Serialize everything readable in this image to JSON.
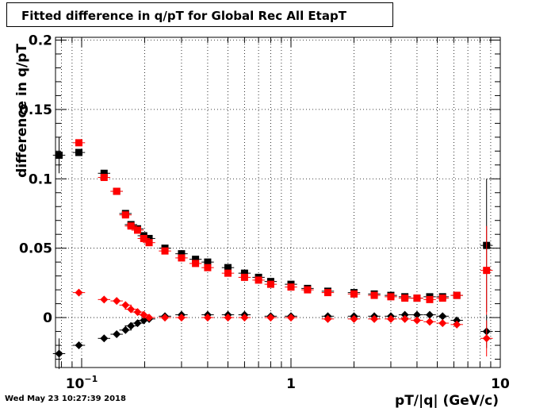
{
  "chart_data": {
    "type": "scatter",
    "title": "Fitted difference in q/pT for Global Rec All EtapT",
    "xlabel": "pT/|q| (GeV/c)",
    "ylabel": "difference in q/pT",
    "x_scale": "log",
    "xlim": [
      0.075,
      10
    ],
    "ylim": [
      -0.036,
      0.202
    ],
    "grid": true,
    "x_tick_labels": [
      {
        "value": 0.1,
        "base": "10",
        "exp": "−1"
      },
      {
        "value": 1,
        "base": "1",
        "exp": ""
      },
      {
        "value": 10,
        "base": "10",
        "exp": ""
      }
    ],
    "y_tick_labels": [
      {
        "value": 0,
        "label": "0"
      },
      {
        "value": 0.05,
        "label": "0.05"
      },
      {
        "value": 0.1,
        "label": "0.1"
      },
      {
        "value": 0.15,
        "label": "0.15"
      },
      {
        "value": 0.2,
        "label": "0.2"
      }
    ],
    "timestamp": "Wed May 23 10:27:39 2018",
    "series": [
      {
        "marker": "square",
        "color": "#000000",
        "points": [
          {
            "x": 0.078,
            "y": 0.117,
            "ey": 0.013
          },
          {
            "x": 0.097,
            "y": 0.119
          },
          {
            "x": 0.128,
            "y": 0.104
          },
          {
            "x": 0.147,
            "y": 0.091
          },
          {
            "x": 0.162,
            "y": 0.075
          },
          {
            "x": 0.172,
            "y": 0.067
          },
          {
            "x": 0.185,
            "y": 0.064
          },
          {
            "x": 0.198,
            "y": 0.059
          },
          {
            "x": 0.21,
            "y": 0.057
          },
          {
            "x": 0.25,
            "y": 0.05
          },
          {
            "x": 0.3,
            "y": 0.046
          },
          {
            "x": 0.35,
            "y": 0.042
          },
          {
            "x": 0.4,
            "y": 0.04
          },
          {
            "x": 0.5,
            "y": 0.036
          },
          {
            "x": 0.6,
            "y": 0.032
          },
          {
            "x": 0.7,
            "y": 0.029
          },
          {
            "x": 0.8,
            "y": 0.026
          },
          {
            "x": 1.0,
            "y": 0.024
          },
          {
            "x": 1.2,
            "y": 0.021
          },
          {
            "x": 1.5,
            "y": 0.019
          },
          {
            "x": 2.0,
            "y": 0.018
          },
          {
            "x": 2.5,
            "y": 0.017
          },
          {
            "x": 3.0,
            "y": 0.016
          },
          {
            "x": 3.5,
            "y": 0.015
          },
          {
            "x": 4.0,
            "y": 0.014
          },
          {
            "x": 4.6,
            "y": 0.015
          },
          {
            "x": 5.3,
            "y": 0.015
          },
          {
            "x": 6.2,
            "y": 0.016
          },
          {
            "x": 8.6,
            "y": 0.052,
            "ey": 0.048
          }
        ]
      },
      {
        "marker": "square",
        "color": "#ff0000",
        "points": [
          {
            "x": 0.097,
            "y": 0.126
          },
          {
            "x": 0.128,
            "y": 0.101
          },
          {
            "x": 0.147,
            "y": 0.091
          },
          {
            "x": 0.162,
            "y": 0.074
          },
          {
            "x": 0.172,
            "y": 0.066
          },
          {
            "x": 0.185,
            "y": 0.063
          },
          {
            "x": 0.198,
            "y": 0.057
          },
          {
            "x": 0.21,
            "y": 0.054
          },
          {
            "x": 0.25,
            "y": 0.048
          },
          {
            "x": 0.3,
            "y": 0.043
          },
          {
            "x": 0.35,
            "y": 0.039
          },
          {
            "x": 0.4,
            "y": 0.036
          },
          {
            "x": 0.5,
            "y": 0.032
          },
          {
            "x": 0.6,
            "y": 0.029
          },
          {
            "x": 0.7,
            "y": 0.027
          },
          {
            "x": 0.8,
            "y": 0.024
          },
          {
            "x": 1.0,
            "y": 0.022
          },
          {
            "x": 1.2,
            "y": 0.02
          },
          {
            "x": 1.5,
            "y": 0.018
          },
          {
            "x": 2.0,
            "y": 0.017
          },
          {
            "x": 2.5,
            "y": 0.016
          },
          {
            "x": 3.0,
            "y": 0.015
          },
          {
            "x": 3.5,
            "y": 0.014
          },
          {
            "x": 4.0,
            "y": 0.014
          },
          {
            "x": 4.6,
            "y": 0.013
          },
          {
            "x": 5.3,
            "y": 0.014
          },
          {
            "x": 6.2,
            "y": 0.016
          },
          {
            "x": 8.6,
            "y": 0.034,
            "ey": 0.032
          }
        ]
      },
      {
        "marker": "diamond",
        "color": "#000000",
        "points": [
          {
            "x": 0.078,
            "y": -0.026,
            "ey": 0.011
          },
          {
            "x": 0.097,
            "y": -0.02
          },
          {
            "x": 0.128,
            "y": -0.015
          },
          {
            "x": 0.147,
            "y": -0.012
          },
          {
            "x": 0.162,
            "y": -0.009
          },
          {
            "x": 0.172,
            "y": -0.006
          },
          {
            "x": 0.185,
            "y": -0.004
          },
          {
            "x": 0.198,
            "y": -0.002
          },
          {
            "x": 0.21,
            "y": -0.001
          },
          {
            "x": 0.25,
            "y": 0.001
          },
          {
            "x": 0.3,
            "y": 0.002
          },
          {
            "x": 0.4,
            "y": 0.002
          },
          {
            "x": 0.5,
            "y": 0.002
          },
          {
            "x": 0.6,
            "y": 0.002
          },
          {
            "x": 0.8,
            "y": 0.001
          },
          {
            "x": 1.0,
            "y": 0.001
          },
          {
            "x": 1.5,
            "y": 0.001
          },
          {
            "x": 2.0,
            "y": 0.001
          },
          {
            "x": 2.5,
            "y": 0.001
          },
          {
            "x": 3.0,
            "y": 0.001
          },
          {
            "x": 3.5,
            "y": 0.002
          },
          {
            "x": 4.0,
            "y": 0.002
          },
          {
            "x": 4.6,
            "y": 0.002
          },
          {
            "x": 5.3,
            "y": 0.001
          },
          {
            "x": 6.2,
            "y": -0.002
          },
          {
            "x": 8.6,
            "y": -0.01,
            "ey": 0.012
          }
        ]
      },
      {
        "marker": "diamond",
        "color": "#ff0000",
        "points": [
          {
            "x": 0.097,
            "y": 0.018
          },
          {
            "x": 0.128,
            "y": 0.013
          },
          {
            "x": 0.147,
            "y": 0.012
          },
          {
            "x": 0.162,
            "y": 0.009
          },
          {
            "x": 0.172,
            "y": 0.006
          },
          {
            "x": 0.185,
            "y": 0.004
          },
          {
            "x": 0.198,
            "y": 0.002
          },
          {
            "x": 0.21,
            "y": 0.0
          },
          {
            "x": 0.25,
            "y": 0.0
          },
          {
            "x": 0.3,
            "y": 0.0
          },
          {
            "x": 0.4,
            "y": 0.0
          },
          {
            "x": 0.5,
            "y": 0.0
          },
          {
            "x": 0.6,
            "y": 0.0
          },
          {
            "x": 0.8,
            "y": 0.0
          },
          {
            "x": 1.0,
            "y": 0.0
          },
          {
            "x": 1.5,
            "y": -0.001
          },
          {
            "x": 2.0,
            "y": -0.001
          },
          {
            "x": 2.5,
            "y": -0.001
          },
          {
            "x": 3.0,
            "y": -0.001
          },
          {
            "x": 3.5,
            "y": -0.001
          },
          {
            "x": 4.0,
            "y": -0.002
          },
          {
            "x": 4.6,
            "y": -0.003
          },
          {
            "x": 5.3,
            "y": -0.004
          },
          {
            "x": 6.2,
            "y": -0.005
          },
          {
            "x": 8.6,
            "y": -0.015,
            "ey": 0.013
          }
        ]
      }
    ]
  }
}
